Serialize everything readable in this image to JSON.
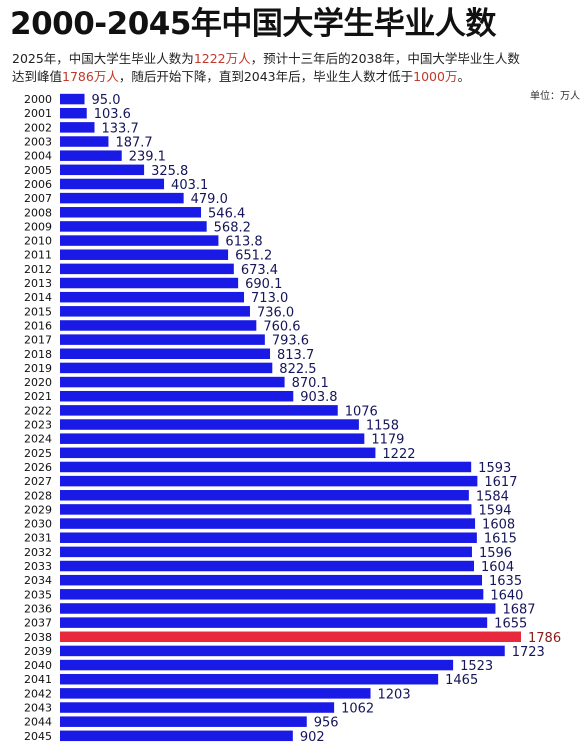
{
  "title": "2000-2045年中国大学生毕业人数",
  "subtitle": {
    "line1": [
      {
        "text": "2025年，中国大学生毕业人数为",
        "red": false
      },
      {
        "text": "1222万人",
        "red": true
      },
      {
        "text": "，预计十三年后的2038年，中国大学毕业生人数",
        "red": false
      }
    ],
    "line2": [
      {
        "text": "达到峰值",
        "red": false
      },
      {
        "text": "1786万人",
        "red": true
      },
      {
        "text": "，随后开始下降，直到2043年后，毕业生人数才低于",
        "red": false
      },
      {
        "text": "1000万",
        "red": true
      },
      {
        "text": "。",
        "red": false
      }
    ]
  },
  "unit_label": "单位：万人",
  "colors": {
    "bar": "#1a1ae6",
    "highlight_bar": "#e8283c",
    "label": "#15155a",
    "highlight_label": "#8b1a1a"
  },
  "chart_data": {
    "type": "bar",
    "orientation": "horizontal",
    "title": "2000-2045年中国大学生毕业人数",
    "unit": "万人",
    "highlight_category": "2038",
    "categories": [
      "2000",
      "2001",
      "2002",
      "2003",
      "2004",
      "2005",
      "2006",
      "2007",
      "2008",
      "2009",
      "2010",
      "2011",
      "2012",
      "2013",
      "2014",
      "2015",
      "2016",
      "2017",
      "2018",
      "2019",
      "2020",
      "2021",
      "2022",
      "2023",
      "2024",
      "2025",
      "2026",
      "2027",
      "2028",
      "2029",
      "2030",
      "2031",
      "2032",
      "2033",
      "2034",
      "2035",
      "2036",
      "2037",
      "2038",
      "2039",
      "2040",
      "2041",
      "2042",
      "2043",
      "2044",
      "2045"
    ],
    "values": [
      95.0,
      103.6,
      133.7,
      187.7,
      239.1,
      325.8,
      403.1,
      479.0,
      546.4,
      568.2,
      613.8,
      651.2,
      673.4,
      690.1,
      713.0,
      736.0,
      760.6,
      793.6,
      813.7,
      822.5,
      870.1,
      903.8,
      1076,
      1158,
      1179,
      1222,
      1593,
      1617,
      1584,
      1594,
      1608,
      1615,
      1596,
      1604,
      1635,
      1640,
      1687,
      1655,
      1786,
      1723,
      1523,
      1465,
      1203,
      1062,
      956,
      902
    ],
    "value_labels": [
      "95.0",
      "103.6",
      "133.7",
      "187.7",
      "239.1",
      "325.8",
      "403.1",
      "479.0",
      "546.4",
      "568.2",
      "613.8",
      "651.2",
      "673.4",
      "690.1",
      "713.0",
      "736.0",
      "760.6",
      "793.6",
      "813.7",
      "822.5",
      "870.1",
      "903.8",
      "1076",
      "1158",
      "1179",
      "1222",
      "1593",
      "1617",
      "1584",
      "1594",
      "1608",
      "1615",
      "1596",
      "1604",
      "1635",
      "1640",
      "1687",
      "1655",
      "1786",
      "1723",
      "1523",
      "1465",
      "1203",
      "1062",
      "956",
      "902"
    ],
    "xlim": [
      0,
      1786
    ],
    "grid": false,
    "legend": "none"
  }
}
